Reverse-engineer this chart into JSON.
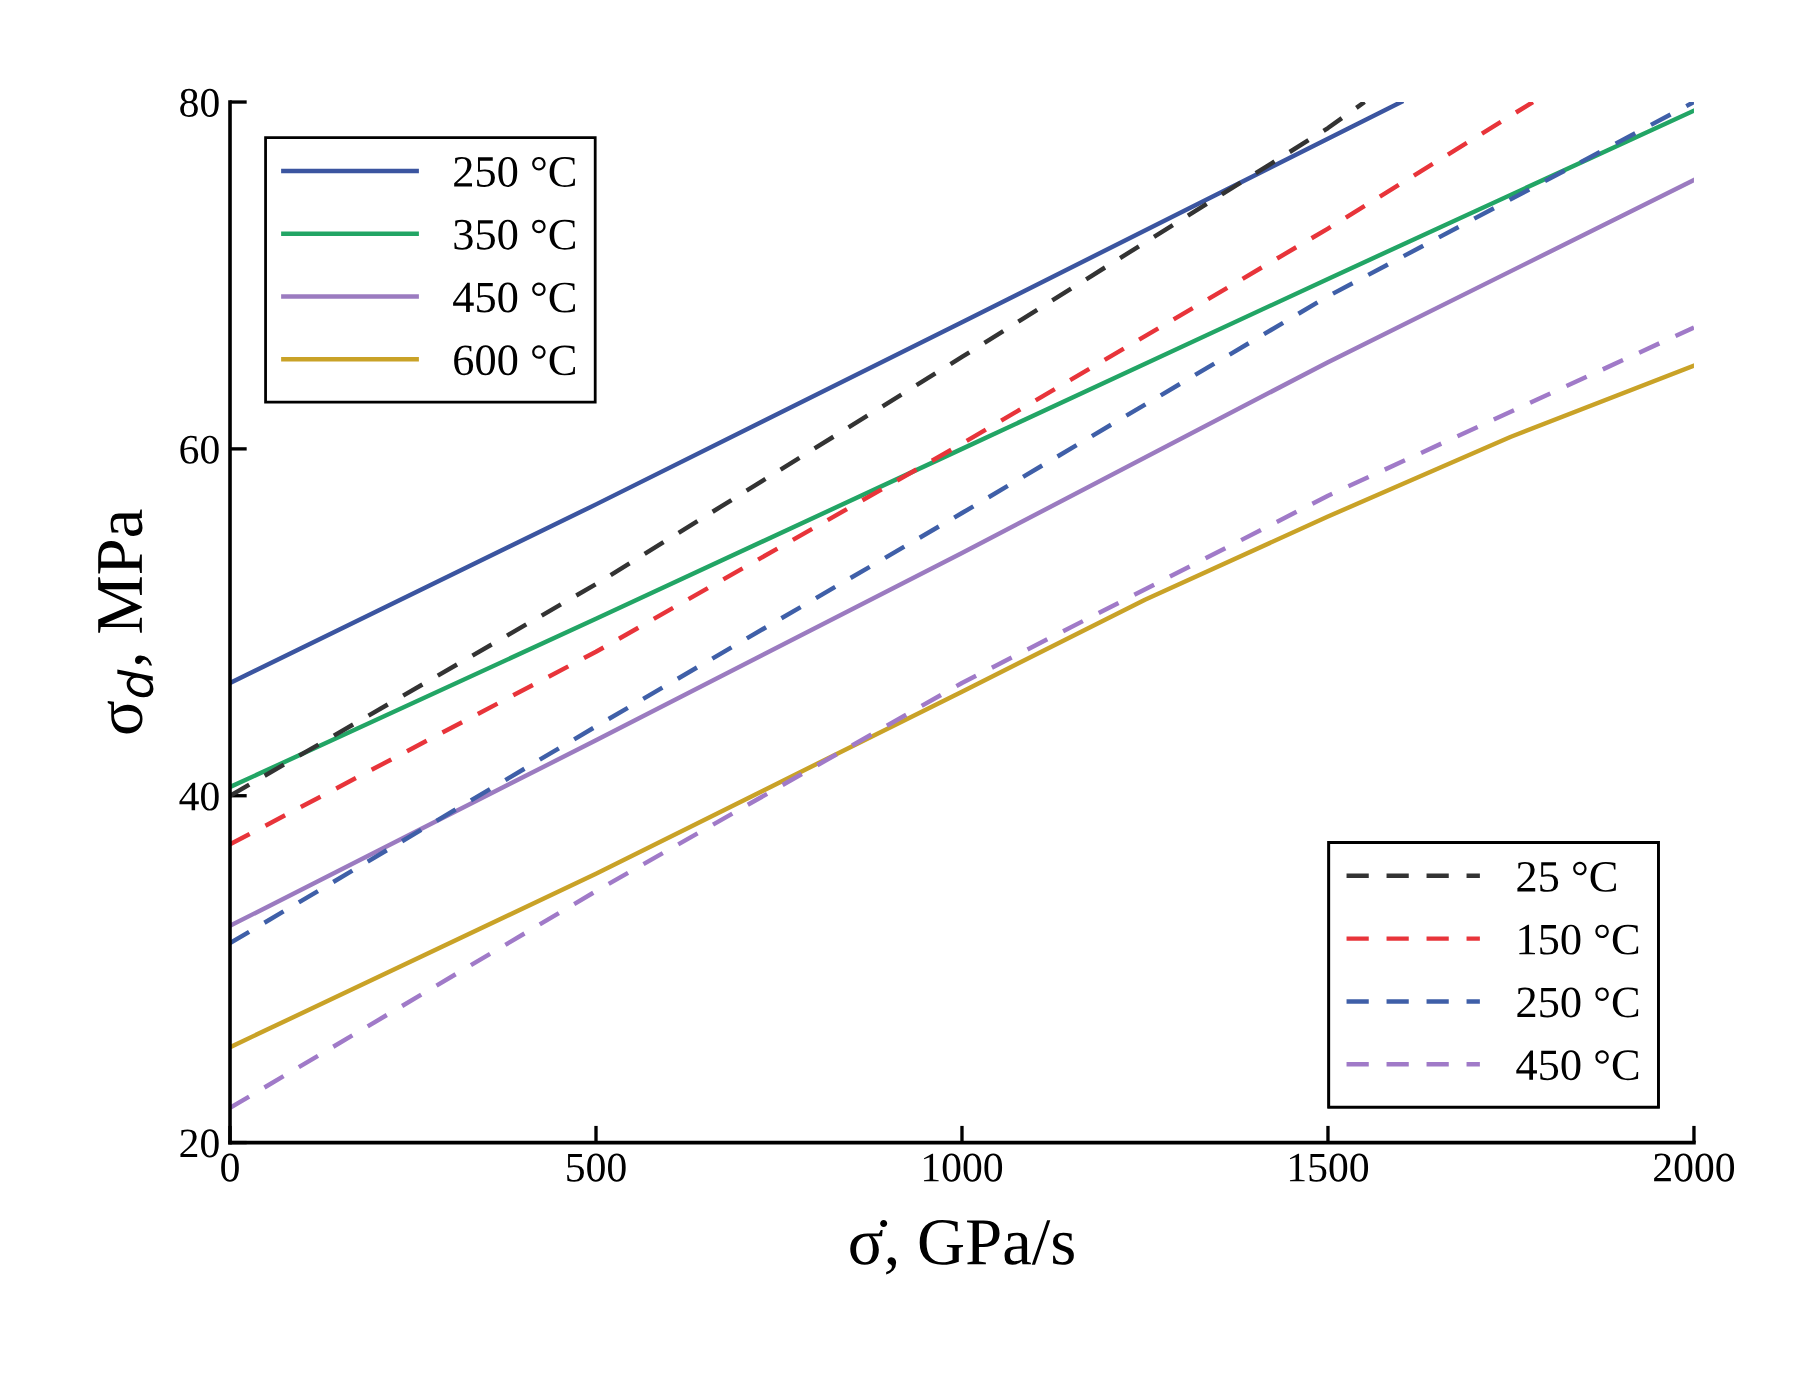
{
  "chart_data": {
    "type": "line",
    "xlabel": "σ̇, GPa/s",
    "ylabel": "σ$_{d}$, MPa",
    "xlim": [
      0,
      2000
    ],
    "xticks": [
      0,
      500,
      1000,
      1500,
      2000
    ],
    "ylim": [
      20,
      80
    ],
    "yticks": [
      20,
      40,
      60,
      80
    ],
    "grid": false,
    "legend": "top left",
    "series": [
      {
        "name": "250 °C",
        "color": "#3b55a0",
        "line_style": "solid",
        "x": [
          0,
          500,
          1000,
          1600
        ],
        "values": [
          46.5,
          56.8,
          67.3,
          80
        ]
      },
      {
        "name": "350 °C",
        "color": "#22a565",
        "line_style": "solid",
        "x": [
          0,
          500,
          1000,
          1500,
          2000
        ],
        "values": [
          40.5,
          50.2,
          60.0,
          69.8,
          79.5
        ]
      },
      {
        "name": "450 °C",
        "color": "#9b7bc0",
        "line_style": "solid",
        "x": [
          0,
          500,
          1000,
          1500,
          2000
        ],
        "values": [
          32.5,
          43.2,
          54.0,
          65.0,
          75.5
        ]
      },
      {
        "name": "600 °C",
        "color": "#c9a227",
        "line_style": "solid",
        "x": [
          0,
          500,
          1000,
          1250,
          1500,
          1750,
          2000
        ],
        "values": [
          25.5,
          35.5,
          46.0,
          51.3,
          56.1,
          60.7,
          64.8
        ]
      },
      {
        "name": "25 °C",
        "color": "#333333",
        "line_style": "dashed",
        "x": [
          0,
          500,
          1000,
          1500,
          1550
        ],
        "values": [
          40.0,
          52.2,
          65.3,
          78.5,
          80
        ]
      },
      {
        "name": "150 °C",
        "color": "#e8343a",
        "line_style": "dashed",
        "x": [
          0,
          500,
          1000,
          1500,
          1780
        ],
        "values": [
          37.2,
          48.3,
          60.3,
          72.7,
          80
        ]
      },
      {
        "name": "250 °C",
        "color": "#3f5fa8",
        "line_style": "dashed",
        "x": [
          0,
          500,
          1000,
          1500,
          2000
        ],
        "values": [
          31.5,
          44.0,
          56.3,
          68.8,
          80
        ]
      },
      {
        "name": "450 °C",
        "color": "#a07ac8",
        "line_style": "dashed",
        "x": [
          0,
          500,
          1000,
          1500,
          2000
        ],
        "values": [
          22.0,
          34.5,
          46.5,
          57.3,
          67.0
        ]
      }
    ]
  }
}
